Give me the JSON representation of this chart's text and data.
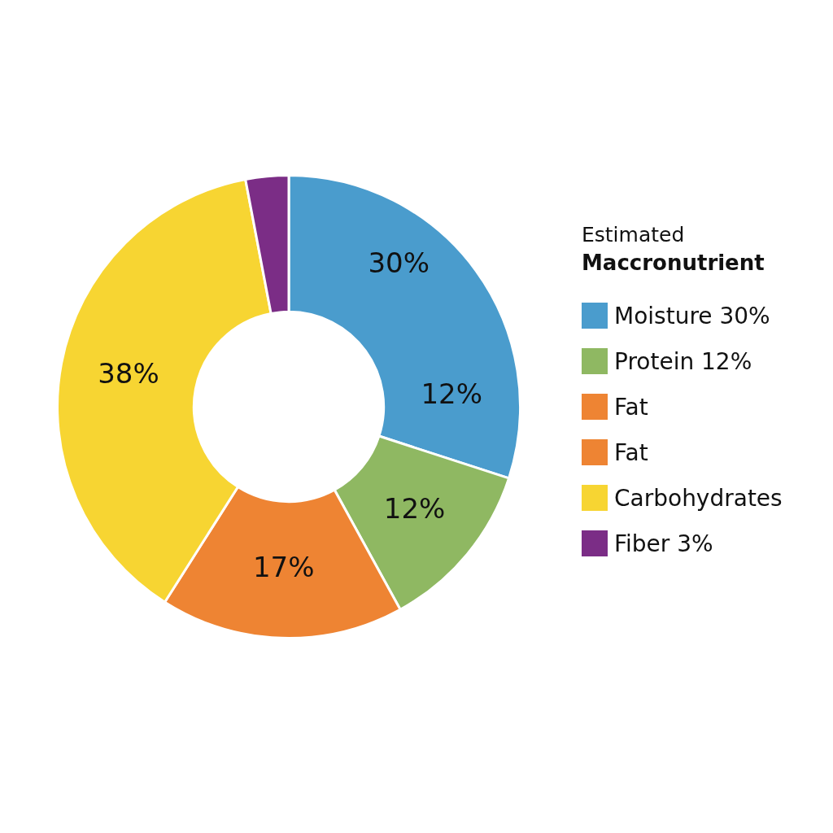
{
  "chart_data": {
    "type": "donut",
    "legend_title": "Estimated\nMaccronutrient",
    "categories": [
      "Moisture 30%",
      "Protein 12%",
      "Fat",
      "Fat",
      "Carbohydrates",
      "Fiber 3%"
    ],
    "values": [
      30,
      12,
      17,
      0,
      38,
      3
    ],
    "colors": [
      "#4a9ccd",
      "#8fb862",
      "#ee8433",
      "#ee8433",
      "#f7d532",
      "#7b2d86"
    ],
    "value_labels": [
      "30%",
      "12%",
      "17%",
      null,
      "38%",
      null
    ],
    "annotations": [
      "12%"
    ],
    "legend": "right"
  }
}
